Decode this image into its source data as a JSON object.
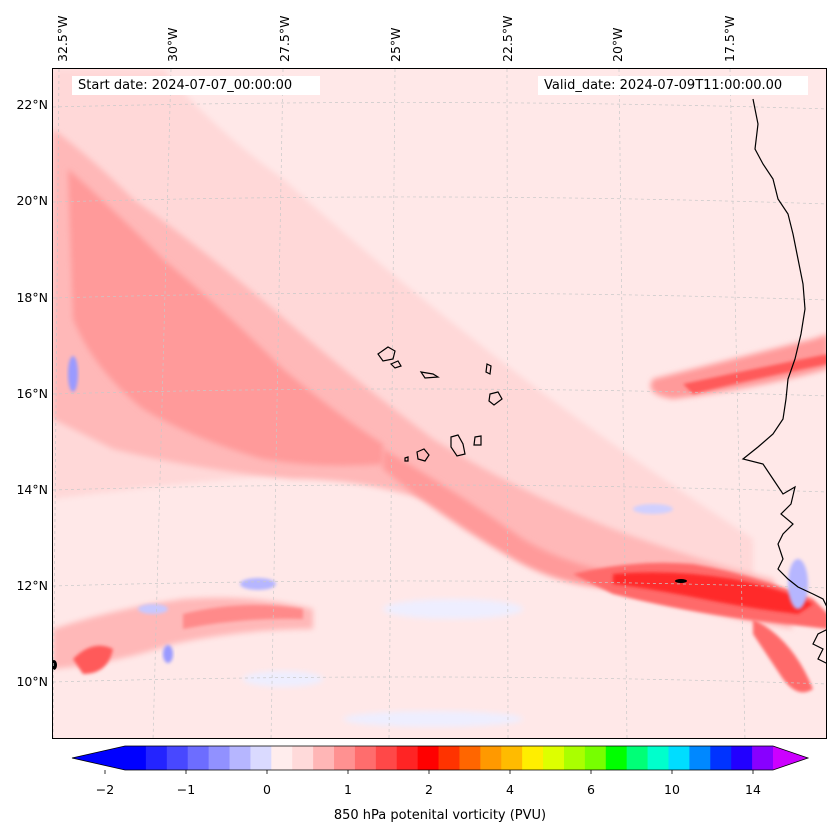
{
  "info": {
    "start_date": "Start date: 2024-07-07_00:00:00",
    "valid_date": "Valid_date: 2024-07-09T11:00:00.00"
  },
  "longitude_labels": [
    "32.5°W",
    "30°W",
    "27.5°W",
    "25°W",
    "22.5°W",
    "20°W",
    "17.5°W"
  ],
  "latitude_labels": [
    "22°N",
    "20°N",
    "18°N",
    "16°N",
    "14°N",
    "12°N",
    "10°N"
  ],
  "colorbar": {
    "label": "850 hPa potenital vorticity (PVU)",
    "ticks": [
      "−2",
      "−1",
      "0",
      "1",
      "2",
      "4",
      "6",
      "10",
      "14"
    ],
    "colors": [
      "#0000ff",
      "#2424ff",
      "#4848ff",
      "#6d6dff",
      "#9191ff",
      "#b6b6ff",
      "#dadaff",
      "#ffeded",
      "#ffdada",
      "#ffb6b6",
      "#ff9191",
      "#ff6d6d",
      "#ff4848",
      "#ff2424",
      "#ff0000",
      "#ff3300",
      "#ff6600",
      "#ff9900",
      "#ffbb00",
      "#ffee00",
      "#ddff00",
      "#aaff00",
      "#77ff00",
      "#00ff00",
      "#00ff77",
      "#00ffcc",
      "#00ddff",
      "#0088ff",
      "#0033ff",
      "#2200ff",
      "#8800ff"
    ],
    "under_color": "#0000ff",
    "over_color": "#cc00ff"
  },
  "map": {
    "region": "Eastern tropical Atlantic / Cape Verde / West Africa coast",
    "background_color": "#ffe8e8",
    "coastline_color": "#000000",
    "gridline_color": "#c8c8c8"
  }
}
